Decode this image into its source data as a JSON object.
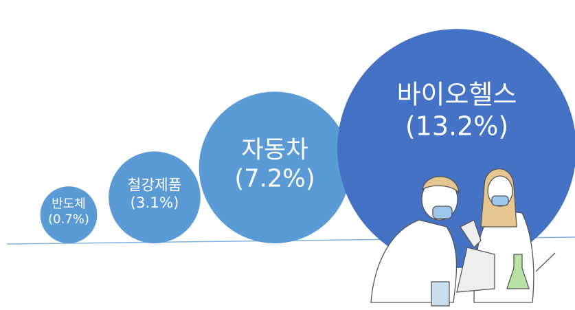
{
  "chart_data": {
    "type": "bubble",
    "categories": [
      "반도체",
      "철강제품",
      "자동차",
      "바이오헬스"
    ],
    "values": [
      0.7,
      3.1,
      7.2,
      13.2
    ],
    "value_labels": [
      "(0.7%)",
      "(3.1%)",
      "(7.2%)",
      "(13.2%)"
    ],
    "colors": [
      "#5b9bd5",
      "#5b9bd5",
      "#5b9bd5",
      "#4472c4"
    ]
  }
}
